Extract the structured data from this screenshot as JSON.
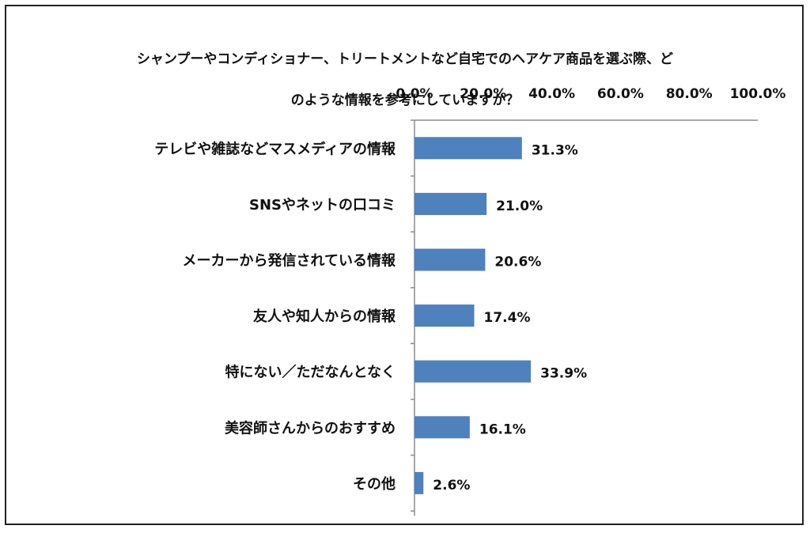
{
  "chart_data": {
    "type": "bar",
    "orientation": "horizontal",
    "title_lines": [
      "シャンプーやコンディショナー、トリートメントなど自宅でのヘアケア商品を選ぶ際、ど",
      "のような情報を参考にしていますか？"
    ],
    "categories": [
      "テレビや雑誌などマスメディアの情報",
      "SNSやネットの口コミ",
      "メーカーから発信されている情報",
      "友人や知人からの情報",
      "特にない／ただなんとなく",
      "美容師さんからのおすすめ",
      "その他"
    ],
    "values": [
      31.3,
      21.0,
      20.6,
      17.4,
      33.9,
      16.1,
      2.6
    ],
    "data_labels": [
      "31.3%",
      "21.0%",
      "20.6%",
      "17.4%",
      "33.9%",
      "16.1%",
      "2.6%"
    ],
    "x_ticks": [
      0,
      20,
      40,
      60,
      80,
      100
    ],
    "x_tick_labels": [
      "0.0%",
      "20.0%",
      "40.0%",
      "60.0%",
      "80.0%",
      "100.0%"
    ],
    "xlim": [
      0,
      100
    ],
    "axis_position": "top",
    "grid": false,
    "bar_color": "#4f81bd"
  }
}
